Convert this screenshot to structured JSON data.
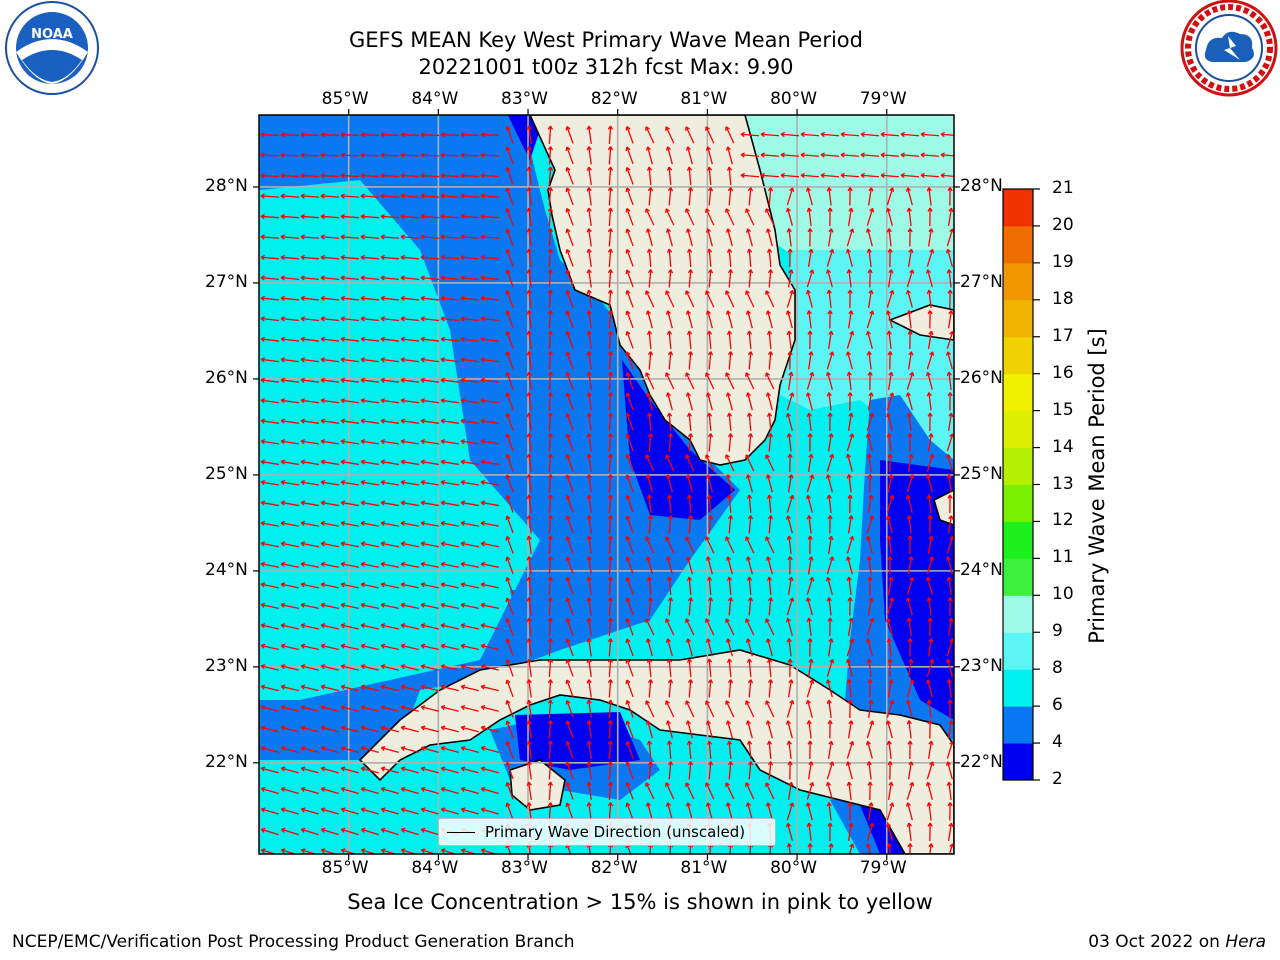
{
  "title": {
    "line1": "GEFS MEAN Key West Primary Wave Mean Period",
    "line2": "20221001 t00z 312h fcst   Max: 9.90"
  },
  "map": {
    "lon_labels": [
      "85°W",
      "84°W",
      "83°W",
      "82°W",
      "81°W",
      "80°W",
      "79°W"
    ],
    "lat_labels": [
      "28°N",
      "27°N",
      "26°N",
      "25°N",
      "24°N",
      "23°N",
      "22°N"
    ],
    "lon_range": [
      -86.0,
      -78.25
    ],
    "lat_range": [
      21.05,
      28.75
    ],
    "colors": {
      "land": "#efedde",
      "coast": "#000000",
      "grid": "#b0b0b0",
      "arrow": "#ff0000",
      "c2_4": "#0000f0",
      "c4_6": "#0a78f0",
      "c6_8": "#00f0f0",
      "c8_9": "#5cf5f5",
      "c9_10": "#9cfae6"
    }
  },
  "legend": {
    "label": "Primary Wave Direction (unscaled)"
  },
  "colorbar": {
    "label": "Primary Wave Mean Period [s]",
    "ticks": [
      "2",
      "4",
      "6",
      "8",
      "9",
      "10",
      "11",
      "12",
      "13",
      "14",
      "15",
      "16",
      "17",
      "18",
      "19",
      "20",
      "21"
    ],
    "colors": [
      "#0000f0",
      "#0a78f0",
      "#00f0f0",
      "#5cf5f5",
      "#9cfae6",
      "#3cf03c",
      "#1ef01e",
      "#78f000",
      "#b4f000",
      "#dcf000",
      "#f0f000",
      "#f0d200",
      "#f0b400",
      "#f09600",
      "#f06e00",
      "#f03200"
    ]
  },
  "caption": "Sea Ice Concentration > 15% is shown in pink to yellow",
  "footer": {
    "left": "NCEP/EMC/Verification Post Processing Product Generation Branch",
    "right_date": "03 Oct 2022 on ",
    "right_host": "Hera"
  },
  "logos": {
    "noaa": {
      "name": "NOAA",
      "ring_text": "NATIONAL OCEANIC AND ATMOSPHERIC ADMINISTRATION · U.S. DEPARTMENT OF COMMERCE"
    },
    "nws": {
      "name": "NATIONAL WEATHER SERVICE"
    }
  }
}
